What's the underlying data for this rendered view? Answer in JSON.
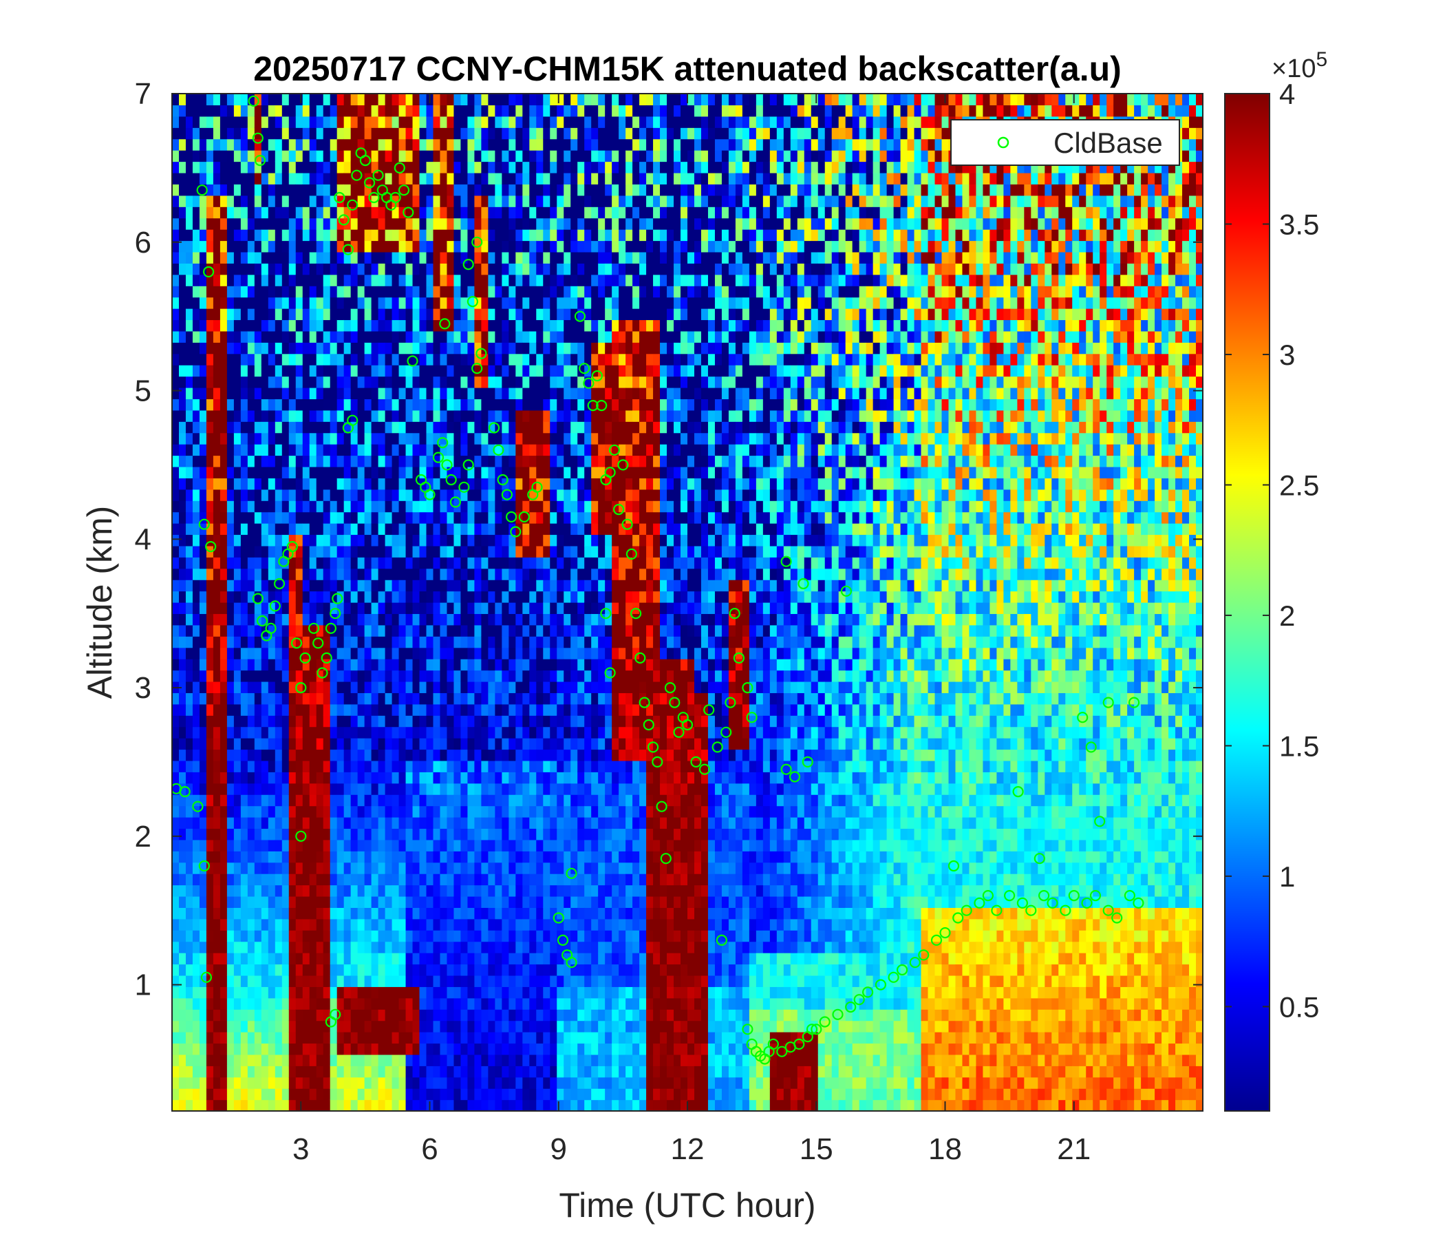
{
  "chart_data": {
    "type": "heatmap",
    "title": "20250717 CCNY-CHM15K attenuated backscatter(a.u)",
    "xlabel": "Time (UTC hour)",
    "ylabel": "Altitude (km)",
    "xlim": [
      0,
      24
    ],
    "ylim": [
      0.15,
      7
    ],
    "xticks": [
      3,
      6,
      9,
      12,
      15,
      18,
      21
    ],
    "xtick_labels": [
      "3",
      "6",
      "9",
      "12",
      "15",
      "18",
      "21"
    ],
    "yticks": [
      1,
      2,
      3,
      4,
      5,
      6,
      7
    ],
    "ytick_labels": [
      "1",
      "2",
      "3",
      "4",
      "5",
      "6",
      "7"
    ],
    "colormap": "jet",
    "clim": [
      0.1,
      4
    ],
    "colorbar_ticks": [
      0.5,
      1,
      1.5,
      2,
      2.5,
      3,
      3.5,
      4
    ],
    "colorbar_tick_labels": [
      "0.5",
      "1",
      "1.5",
      "2",
      "2.5",
      "3",
      "3.5",
      "4"
    ],
    "colorbar_exponent": "×10^5",
    "colorbar_exponent_base": "×10",
    "colorbar_exponent_power": "5",
    "legend_position": "top-right",
    "series": [
      {
        "name": "CldBase",
        "marker": "open-circle",
        "color": "#00ff00",
        "points": [
          [
            0.1,
            2.32
          ],
          [
            0.3,
            2.3
          ],
          [
            0.6,
            2.2
          ],
          [
            0.75,
            1.8
          ],
          [
            0.8,
            1.05
          ],
          [
            0.7,
            6.35
          ],
          [
            0.75,
            4.1
          ],
          [
            0.9,
            3.95
          ],
          [
            0.85,
            5.8
          ],
          [
            1.9,
            6.95
          ],
          [
            2.0,
            6.7
          ],
          [
            2.05,
            6.55
          ],
          [
            2.0,
            3.6
          ],
          [
            2.1,
            3.45
          ],
          [
            2.2,
            3.35
          ],
          [
            2.3,
            3.4
          ],
          [
            2.4,
            3.55
          ],
          [
            2.5,
            3.7
          ],
          [
            2.6,
            3.85
          ],
          [
            2.7,
            3.9
          ],
          [
            2.8,
            3.95
          ],
          [
            2.9,
            3.3
          ],
          [
            3.0,
            3.0
          ],
          [
            3.0,
            2.0
          ],
          [
            3.1,
            3.2
          ],
          [
            3.3,
            3.4
          ],
          [
            3.4,
            3.3
          ],
          [
            3.5,
            3.1
          ],
          [
            3.6,
            3.2
          ],
          [
            3.7,
            3.4
          ],
          [
            3.8,
            3.5
          ],
          [
            3.85,
            3.6
          ],
          [
            3.8,
            0.8
          ],
          [
            3.7,
            0.75
          ],
          [
            3.9,
            6.3
          ],
          [
            4.0,
            6.15
          ],
          [
            4.1,
            5.95
          ],
          [
            4.2,
            6.25
          ],
          [
            4.3,
            6.45
          ],
          [
            4.4,
            6.6
          ],
          [
            4.5,
            6.55
          ],
          [
            4.6,
            6.4
          ],
          [
            4.7,
            6.3
          ],
          [
            4.8,
            6.45
          ],
          [
            4.9,
            6.35
          ],
          [
            5.0,
            6.3
          ],
          [
            5.1,
            6.25
          ],
          [
            5.2,
            6.3
          ],
          [
            5.3,
            6.5
          ],
          [
            5.4,
            6.35
          ],
          [
            5.5,
            6.2
          ],
          [
            4.1,
            4.75
          ],
          [
            4.2,
            4.8
          ],
          [
            5.6,
            5.2
          ],
          [
            5.8,
            4.4
          ],
          [
            5.9,
            4.35
          ],
          [
            6.0,
            4.3
          ],
          [
            6.2,
            4.55
          ],
          [
            6.3,
            4.65
          ],
          [
            6.4,
            4.5
          ],
          [
            6.5,
            4.4
          ],
          [
            6.6,
            4.25
          ],
          [
            6.8,
            4.35
          ],
          [
            6.9,
            4.5
          ],
          [
            6.35,
            5.45
          ],
          [
            7.0,
            5.6
          ],
          [
            7.1,
            5.15
          ],
          [
            7.2,
            5.25
          ],
          [
            6.9,
            5.85
          ],
          [
            7.1,
            6.0
          ],
          [
            7.5,
            4.75
          ],
          [
            7.6,
            4.6
          ],
          [
            7.7,
            4.4
          ],
          [
            7.8,
            4.3
          ],
          [
            7.9,
            4.15
          ],
          [
            8.0,
            4.05
          ],
          [
            8.2,
            4.15
          ],
          [
            8.4,
            4.3
          ],
          [
            8.5,
            4.35
          ],
          [
            9.0,
            1.45
          ],
          [
            9.1,
            1.3
          ],
          [
            9.2,
            1.2
          ],
          [
            9.3,
            1.15
          ],
          [
            9.3,
            1.75
          ],
          [
            9.6,
            5.15
          ],
          [
            9.7,
            5.05
          ],
          [
            9.8,
            4.9
          ],
          [
            9.5,
            5.5
          ],
          [
            9.9,
            5.1
          ],
          [
            10.0,
            4.9
          ],
          [
            10.1,
            4.4
          ],
          [
            10.2,
            4.45
          ],
          [
            10.3,
            4.6
          ],
          [
            10.4,
            4.2
          ],
          [
            10.5,
            4.5
          ],
          [
            10.6,
            4.1
          ],
          [
            10.7,
            3.9
          ],
          [
            10.1,
            3.5
          ],
          [
            10.2,
            3.1
          ],
          [
            10.8,
            3.5
          ],
          [
            10.9,
            3.2
          ],
          [
            11.0,
            2.9
          ],
          [
            11.1,
            2.75
          ],
          [
            11.2,
            2.6
          ],
          [
            11.3,
            2.5
          ],
          [
            11.4,
            2.2
          ],
          [
            11.5,
            1.85
          ],
          [
            11.6,
            3.0
          ],
          [
            11.7,
            2.9
          ],
          [
            11.8,
            2.7
          ],
          [
            11.9,
            2.8
          ],
          [
            12.0,
            2.75
          ],
          [
            12.2,
            2.5
          ],
          [
            12.4,
            2.45
          ],
          [
            12.5,
            2.85
          ],
          [
            12.7,
            2.6
          ],
          [
            12.9,
            2.7
          ],
          [
            13.0,
            2.9
          ],
          [
            13.1,
            3.5
          ],
          [
            13.2,
            3.2
          ],
          [
            13.4,
            3.0
          ],
          [
            13.5,
            2.8
          ],
          [
            12.8,
            1.3
          ],
          [
            13.4,
            0.7
          ],
          [
            13.5,
            0.6
          ],
          [
            13.6,
            0.55
          ],
          [
            13.7,
            0.52
          ],
          [
            13.8,
            0.5
          ],
          [
            13.9,
            0.55
          ],
          [
            14.0,
            0.6
          ],
          [
            14.2,
            0.55
          ],
          [
            14.4,
            0.58
          ],
          [
            14.6,
            0.6
          ],
          [
            14.8,
            0.65
          ],
          [
            14.9,
            0.7
          ],
          [
            15.0,
            0.7
          ],
          [
            14.3,
            2.45
          ],
          [
            14.5,
            2.4
          ],
          [
            14.8,
            2.5
          ],
          [
            14.7,
            3.7
          ],
          [
            14.3,
            3.85
          ],
          [
            15.7,
            3.65
          ],
          [
            15.2,
            0.75
          ],
          [
            15.5,
            0.8
          ],
          [
            15.8,
            0.85
          ],
          [
            16.0,
            0.9
          ],
          [
            16.2,
            0.95
          ],
          [
            16.5,
            1.0
          ],
          [
            16.8,
            1.05
          ],
          [
            17.0,
            1.1
          ],
          [
            17.3,
            1.15
          ],
          [
            17.5,
            1.2
          ],
          [
            17.8,
            1.3
          ],
          [
            18.0,
            1.35
          ],
          [
            18.3,
            1.45
          ],
          [
            18.5,
            1.5
          ],
          [
            18.8,
            1.55
          ],
          [
            19.0,
            1.6
          ],
          [
            19.2,
            1.5
          ],
          [
            19.5,
            1.6
          ],
          [
            19.8,
            1.55
          ],
          [
            20.0,
            1.5
          ],
          [
            20.3,
            1.6
          ],
          [
            20.5,
            1.55
          ],
          [
            20.8,
            1.5
          ],
          [
            21.0,
            1.6
          ],
          [
            21.3,
            1.55
          ],
          [
            21.5,
            1.6
          ],
          [
            21.8,
            1.5
          ],
          [
            22.0,
            1.45
          ],
          [
            22.3,
            1.6
          ],
          [
            22.5,
            1.55
          ],
          [
            18.2,
            1.8
          ],
          [
            19.7,
            2.3
          ],
          [
            20.2,
            1.85
          ],
          [
            21.2,
            2.8
          ],
          [
            21.4,
            2.6
          ],
          [
            21.6,
            2.1
          ],
          [
            21.8,
            2.9
          ],
          [
            22.4,
            2.9
          ]
        ]
      }
    ]
  }
}
